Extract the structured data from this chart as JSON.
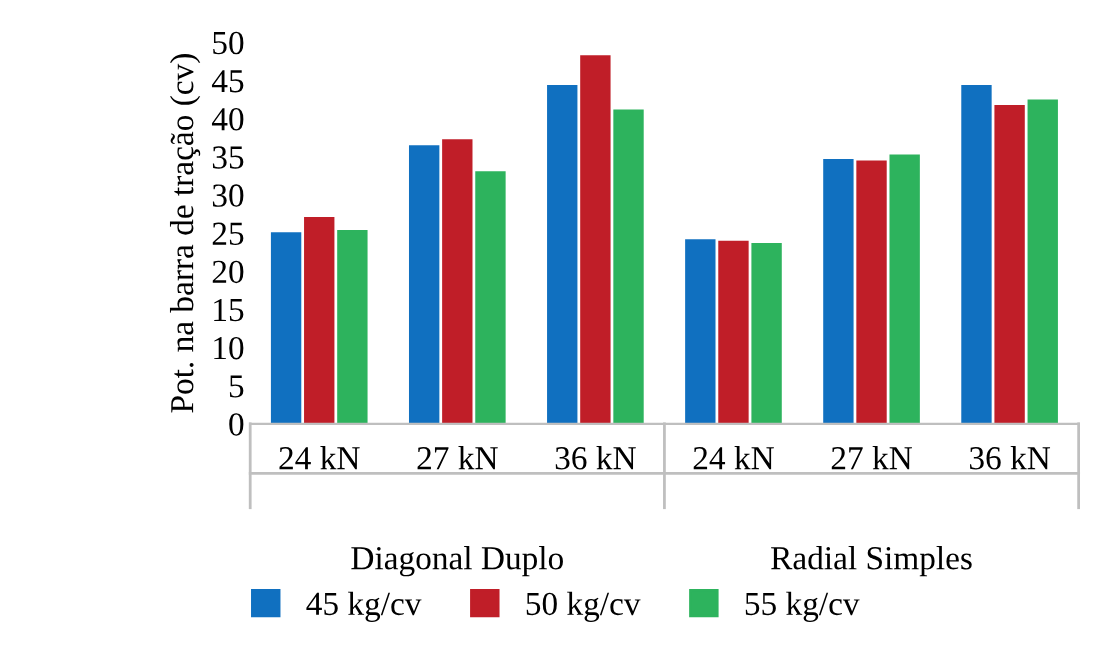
{
  "chart_data": {
    "type": "bar",
    "ylabel": "Pot. na barra de tração (cv)",
    "categories": [
      "24 kN",
      "27 kN",
      "36 kN",
      "24 kN",
      "27 kN",
      "36 kN"
    ],
    "annotations": [
      "Diagonal Duplo",
      "Radial Simples"
    ],
    "series": [
      {
        "name": "45 kg/cv",
        "color": "#1070c0",
        "values": [
          25.1,
          36.5,
          44.4,
          24.2,
          34.7,
          44.4
        ]
      },
      {
        "name": "50 kg/cv",
        "color": "#c01e28",
        "values": [
          27.1,
          37.3,
          48.3,
          24.0,
          34.5,
          41.8
        ]
      },
      {
        "name": "55 kg/cv",
        "color": "#2db35d",
        "values": [
          25.4,
          33.1,
          41.2,
          23.7,
          35.3,
          42.5
        ]
      }
    ],
    "ylim": [
      0,
      50
    ],
    "yticks": [
      0,
      5,
      10,
      15,
      20,
      25,
      30,
      35,
      40,
      45,
      50
    ],
    "grid": false,
    "legend": "bottom"
  }
}
